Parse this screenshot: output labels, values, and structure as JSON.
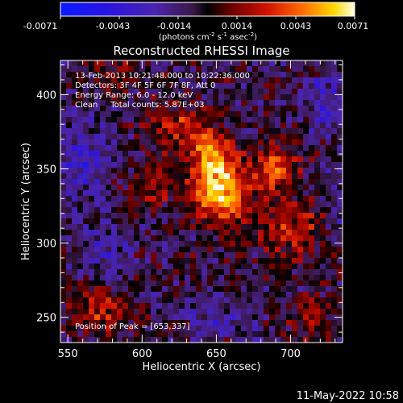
{
  "chart_data": {
    "type": "heatmap",
    "title": "Reconstructed RHESSI Image",
    "xlabel": "Heliocentric X (arcsec)",
    "ylabel": "Heliocentric Y (arcsec)",
    "xlim": [
      545,
      735
    ],
    "ylim": [
      233,
      423
    ],
    "x_ticks": [
      550,
      600,
      650,
      700
    ],
    "y_ticks": [
      250,
      300,
      350,
      400
    ],
    "colorbar": {
      "min": -0.0071,
      "max": 0.0071,
      "ticks": [
        "-0.0071",
        "-0.0043",
        "-0.0014",
        "0.0014",
        "0.0043",
        "0.0071"
      ],
      "unit_prefix": "(photons cm",
      "unit_exp1": "-2",
      "unit_mid": " s",
      "unit_exp2": "-1",
      "unit_mid2": " asec",
      "unit_exp3": "-2",
      "unit_suffix": ")"
    },
    "annotations": {
      "time_range": "13-Feb-2013 10:21:48.000 to 10:22:36.000",
      "detectors": "Detectors: 3F 4F 5F 6F 7F 8F, Att 0",
      "energy": "Energy Range: 6.0 - 12.0 keV",
      "clean": "Clean     Total counts: 5.87E+03",
      "peak": "Position of Peak = [653,337]"
    },
    "peak": [
      653,
      337
    ],
    "sources": [
      {
        "x": 653,
        "y": 337,
        "amp": 0.0071,
        "sx": 12,
        "sy": 16
      },
      {
        "x": 645,
        "y": 362,
        "amp": 0.0042,
        "sx": 9,
        "sy": 9
      },
      {
        "x": 690,
        "y": 350,
        "amp": 0.0045,
        "sx": 10,
        "sy": 11
      },
      {
        "x": 625,
        "y": 380,
        "amp": 0.0032,
        "sx": 14,
        "sy": 10
      },
      {
        "x": 700,
        "y": 310,
        "amp": 0.0028,
        "sx": 18,
        "sy": 14
      },
      {
        "x": 610,
        "y": 340,
        "amp": 0.0022,
        "sx": 16,
        "sy": 12
      },
      {
        "x": 570,
        "y": 255,
        "amp": 0.0028,
        "sx": 14,
        "sy": 12
      },
      {
        "x": 715,
        "y": 250,
        "amp": 0.002,
        "sx": 12,
        "sy": 10
      },
      {
        "x": 580,
        "y": 410,
        "amp": 0.0015,
        "sx": 14,
        "sy": 10
      },
      {
        "x": 560,
        "y": 355,
        "amp": -0.0028,
        "sx": 14,
        "sy": 20
      },
      {
        "x": 575,
        "y": 290,
        "amp": -0.0022,
        "sx": 12,
        "sy": 12
      },
      {
        "x": 725,
        "y": 395,
        "amp": -0.0025,
        "sx": 12,
        "sy": 14
      },
      {
        "x": 650,
        "y": 250,
        "amp": -0.0018,
        "sx": 18,
        "sy": 10
      },
      {
        "x": 735,
        "y": 330,
        "amp": -0.0015,
        "sx": 10,
        "sy": 16
      }
    ]
  },
  "timestamp": "11-May-2022 10:58"
}
